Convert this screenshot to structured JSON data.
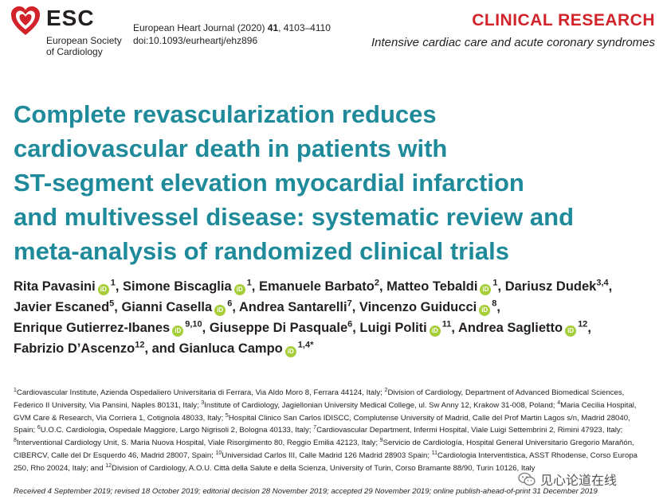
{
  "header": {
    "brand": "ESC",
    "society_line1": "European Society",
    "society_line2": "of Cardiology",
    "journal_prefix": "European Heart Journal (2020) ",
    "journal_volume": "41",
    "journal_pages": ", 4103–4110",
    "doi": "doi:10.1093/eurheartj/ehz896",
    "section": "CLINICAL RESEARCH",
    "subsection": "Intensive cardiac care and acute coronary syndromes"
  },
  "title_lines": [
    "Complete revascularization reduces",
    "cardiovascular death in patients with",
    "ST-segment elevation myocardial infarction",
    "and multivessel disease: systematic review and",
    "meta-analysis of randomized clinical trials"
  ],
  "authors": [
    {
      "name": "Rita Pavasini",
      "sup": "1",
      "orcid": true
    },
    {
      "name": "Simone Biscaglia",
      "sup": "1",
      "orcid": true
    },
    {
      "name": "Emanuele Barbato",
      "sup": "2",
      "orcid": false
    },
    {
      "name": "Matteo Tebaldi",
      "sup": "1",
      "orcid": true
    },
    {
      "name": "Dariusz Dudek",
      "sup": "3,4",
      "orcid": false
    },
    {
      "name": "Javier Escaned",
      "sup": "5",
      "orcid": false
    },
    {
      "name": "Gianni Casella",
      "sup": "6",
      "orcid": true
    },
    {
      "name": "Andrea Santarelli",
      "sup": "7",
      "orcid": false
    },
    {
      "name": "Vincenzo Guiducci",
      "sup": "8",
      "orcid": true
    },
    {
      "name": "Enrique Gutierrez-Ibanes",
      "sup": "9,10",
      "orcid": true
    },
    {
      "name": "Giuseppe Di Pasquale",
      "sup": "6",
      "orcid": false
    },
    {
      "name": "Luigi Politi",
      "sup": "11",
      "orcid": true
    },
    {
      "name": "Andrea Saglietto",
      "sup": "12",
      "orcid": true
    },
    {
      "name": "Fabrizio D’Ascenzo",
      "sup": "12",
      "orcid": false
    },
    {
      "name": "Gianluca Campo",
      "sup": "1,4",
      "orcid": true,
      "corresponding": "*"
    }
  ],
  "authors_conjunction": "and",
  "orcid_label": "iD",
  "affiliations": [
    {
      "n": "1",
      "text": "Cardiovascular Institute, Azienda Ospedaliero Universitaria di Ferrara, Via Aldo Moro 8, Ferrara 44124, Italy; "
    },
    {
      "n": "2",
      "text": "Division of Cardiology, Department of Advanced Biomedical Sciences, Federico II University, Via Pansini, Naples 80131, Italy; "
    },
    {
      "n": "3",
      "text": "Institute of Cardiology, Jagiellonian University Medical College, ul. Sw Anny 12, Krakow 31-008, Poland; "
    },
    {
      "n": "4",
      "text": "Maria Cecilia Hospital, GVM Care & Research, Via Corriera 1, Cotignola 48033, Italy; "
    },
    {
      "n": "5",
      "text": "Hospital Clinico San Carlos IDISCC, Complutense University of Madrid, Calle del Prof Martin Lagos s/n, Madrid 28040, Spain; "
    },
    {
      "n": "6",
      "text": "U.O.C. Cardiologia, Ospedale Maggiore, Largo Nigrisoli 2, Bologna 40133, Italy; "
    },
    {
      "n": "7",
      "text": "Cardiovascular Department, Infermi Hospital, Viale Luigi Settembrini 2, Rimini 47923, Italy; "
    },
    {
      "n": "8",
      "text": "Interventional Cardiology Unit, S. Maria Nuova Hospital, Viale Risorgimento 80, Reggio Emilia 42123, Italy; "
    },
    {
      "n": "9",
      "text": "Servicio de Cardiología, Hospital General Universitario Gregorio Marañón, CIBERCV, Calle del Dr Esquerdo 46, Madrid 28007, Spain; "
    },
    {
      "n": "10",
      "text": "Universidad Carlos III, Calle Madrid 126 Madrid 28903 Spain; "
    },
    {
      "n": "11",
      "text": "Cardiologia Interventistica, ASST Rhodense, Corso Europa 250, Rho 20024, Italy; and "
    },
    {
      "n": "12",
      "text": "Division of Cardiology, A.O.U. Città della Salute e della Scienza, University of Turin, Corso Bramante 88/90, Turin 10126, Italy"
    }
  ],
  "dates": "Received 4 September 2019; revised 18 October 2019; editorial decision 28 November 2019; accepted 29 November 2019; online publish-ahead-of-print 31 December 2019",
  "watermark": "见心论道在线",
  "colors": {
    "title": "#1f8a9a",
    "brand_red": "#d2232a",
    "orcid_green": "#a6ce39"
  }
}
